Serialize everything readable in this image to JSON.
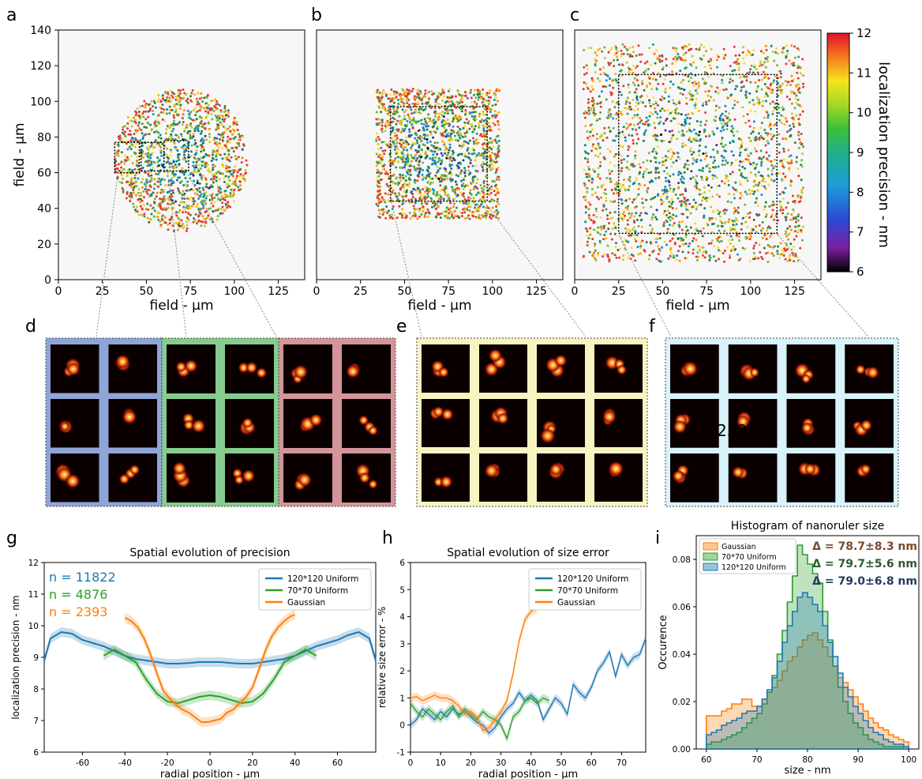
{
  "panel_letters": [
    "a",
    "b",
    "c",
    "d",
    "e",
    "f",
    "g",
    "h",
    "i"
  ],
  "overlay_text": "n = 2393",
  "scatter_axes": {
    "xlabel": "field - µm",
    "ylabel": "field - µm",
    "xticks": [
      "0",
      "25",
      "50",
      "75",
      "100",
      "125"
    ],
    "yticks": [
      "0",
      "20",
      "40",
      "60",
      "80",
      "100",
      "120",
      "140"
    ]
  },
  "colorbar": {
    "label": "localization precision - nm",
    "ticks": [
      "6",
      "7",
      "8",
      "9",
      "10",
      "11",
      "12"
    ]
  },
  "colors": {
    "panel_d1": "#8fa5d8",
    "panel_d2": "#86cc8e",
    "panel_d3": "#d4959a",
    "panel_e": "#f7f4c2",
    "panel_f": "#d9f3fa",
    "blue": "#1f77b4",
    "green": "#2ca02c",
    "orange": "#ff7f0e"
  },
  "chart_data": [
    {
      "id": "g",
      "type": "line",
      "title": "Spatial evolution of precision",
      "xlabel": "radial position - µm",
      "ylabel": "localization precision - nm",
      "xlim": [
        -78,
        78
      ],
      "ylim": [
        6,
        12
      ],
      "xticks": [
        "-60",
        "-40",
        "-20",
        "0",
        "20",
        "40",
        "60"
      ],
      "yticks": [
        "6",
        "7",
        "8",
        "9",
        "10",
        "11",
        "12"
      ],
      "n_labels": [
        "n = 11822",
        "n = 4876",
        "n = 2393"
      ],
      "legend": [
        "120*120 Uniform",
        "70*70 Uniform",
        "Gaussian"
      ],
      "series": [
        {
          "name": "120*120 Uniform",
          "x": [
            -78,
            -75,
            -70,
            -65,
            -60,
            -55,
            -50,
            -45,
            -40,
            -35,
            -30,
            -25,
            -20,
            -15,
            -10,
            -5,
            0,
            5,
            10,
            15,
            20,
            25,
            30,
            35,
            40,
            45,
            50,
            55,
            60,
            65,
            70,
            75,
            78
          ],
          "y": [
            8.9,
            9.6,
            9.8,
            9.75,
            9.55,
            9.45,
            9.35,
            9.2,
            9.05,
            8.95,
            8.9,
            8.85,
            8.8,
            8.8,
            8.82,
            8.85,
            8.85,
            8.85,
            8.82,
            8.8,
            8.8,
            8.85,
            8.9,
            8.95,
            9.05,
            9.2,
            9.35,
            9.45,
            9.55,
            9.7,
            9.8,
            9.6,
            8.9
          ]
        },
        {
          "name": "70*70 Uniform",
          "x": [
            -50,
            -45,
            -40,
            -35,
            -30,
            -25,
            -20,
            -15,
            -10,
            -5,
            0,
            5,
            10,
            15,
            20,
            25,
            30,
            35,
            40,
            45,
            50
          ],
          "y": [
            9.05,
            9.25,
            9.05,
            8.85,
            8.3,
            7.85,
            7.6,
            7.55,
            7.65,
            7.75,
            7.8,
            7.75,
            7.65,
            7.55,
            7.6,
            7.85,
            8.3,
            8.85,
            9.05,
            9.25,
            9.05
          ]
        },
        {
          "name": "Gaussian",
          "x": [
            -40,
            -37,
            -34,
            -31,
            -28,
            -25,
            -22,
            -19,
            -16,
            -13,
            -10,
            -7,
            -4,
            -1,
            2,
            5,
            8,
            11,
            14,
            17,
            20,
            23,
            26,
            29,
            32,
            35,
            38,
            40
          ],
          "y": [
            10.25,
            10.15,
            9.95,
            9.6,
            9.1,
            8.5,
            7.95,
            7.7,
            7.5,
            7.35,
            7.25,
            7.1,
            6.95,
            6.95,
            7.0,
            7.05,
            7.25,
            7.35,
            7.55,
            7.75,
            8.05,
            8.6,
            9.2,
            9.65,
            9.95,
            10.15,
            10.3,
            10.35
          ]
        }
      ]
    },
    {
      "id": "h",
      "type": "line",
      "title": "Spatial evolution of size error",
      "xlabel": "radial position - µm",
      "ylabel": "relative size error - %",
      "xlim": [
        0,
        78
      ],
      "ylim": [
        -1,
        6
      ],
      "xticks": [
        "0",
        "10",
        "20",
        "30",
        "40",
        "50",
        "60",
        "70"
      ],
      "yticks": [
        "-1",
        "0",
        "1",
        "2",
        "3",
        "4",
        "5",
        "6"
      ],
      "legend": [
        "120*120 Uniform",
        "70*70 Uniform",
        "Gaussian"
      ],
      "series": [
        {
          "name": "120*120 Uniform",
          "x": [
            0,
            2,
            4,
            6,
            8,
            10,
            12,
            14,
            16,
            18,
            20,
            22,
            24,
            26,
            28,
            30,
            32,
            34,
            36,
            38,
            40,
            42,
            44,
            46,
            48,
            50,
            52,
            54,
            56,
            58,
            60,
            62,
            64,
            66,
            68,
            70,
            72,
            74,
            76,
            78
          ],
          "y": [
            0.0,
            0.2,
            0.6,
            0.4,
            0.2,
            0.5,
            0.3,
            0.6,
            0.4,
            0.5,
            0.3,
            0.1,
            0.0,
            -0.3,
            -0.1,
            0.3,
            0.6,
            0.8,
            1.2,
            0.9,
            1.1,
            0.9,
            0.2,
            0.6,
            1.0,
            0.8,
            0.4,
            1.5,
            1.2,
            1.0,
            1.4,
            2.0,
            2.3,
            2.7,
            1.8,
            2.6,
            2.2,
            2.5,
            2.6,
            3.2
          ]
        },
        {
          "name": "70*70 Uniform",
          "x": [
            0,
            2,
            4,
            6,
            8,
            10,
            12,
            14,
            16,
            18,
            20,
            22,
            24,
            26,
            28,
            30,
            32,
            34,
            36,
            38,
            40,
            42,
            44,
            46
          ],
          "y": [
            0.8,
            0.5,
            0.3,
            0.6,
            0.4,
            0.2,
            0.5,
            0.7,
            0.3,
            0.6,
            0.4,
            0.2,
            0.5,
            0.3,
            0.2,
            0.0,
            -0.5,
            0.3,
            0.5,
            0.9,
            1.0,
            0.8,
            1.0,
            0.9
          ]
        },
        {
          "name": "Gaussian",
          "x": [
            0,
            2,
            4,
            6,
            8,
            10,
            12,
            14,
            16,
            18,
            20,
            22,
            24,
            26,
            28,
            30,
            32,
            34,
            36,
            38,
            40,
            42
          ],
          "y": [
            1.0,
            1.05,
            0.9,
            1.0,
            1.1,
            1.0,
            1.0,
            0.9,
            0.7,
            0.4,
            0.5,
            0.3,
            -0.2,
            -0.1,
            0.2,
            0.5,
            0.9,
            1.9,
            3.1,
            3.9,
            4.2,
            4.3
          ]
        }
      ]
    },
    {
      "id": "i",
      "type": "histogram",
      "title": "Histogram of nanoruler size",
      "xlabel": "size - nm",
      "ylabel": "Occurence",
      "xlim": [
        58,
        102
      ],
      "ylim": [
        0,
        0.09
      ],
      "xticks": [
        "60",
        "70",
        "80",
        "90",
        "100"
      ],
      "yticks": [
        "0.00",
        "0.02",
        "0.04",
        "0.06",
        "0.08"
      ],
      "bins": [
        60,
        61,
        62,
        63,
        64,
        65,
        66,
        67,
        68,
        69,
        70,
        71,
        72,
        73,
        74,
        75,
        76,
        77,
        78,
        79,
        80,
        81,
        82,
        83,
        84,
        85,
        86,
        87,
        88,
        89,
        90,
        91,
        92,
        93,
        94,
        95,
        96,
        97,
        98,
        99,
        100
      ],
      "legend": [
        "Gaussian",
        "70*70 Uniform",
        "120*120 Uniform"
      ],
      "annotations": [
        "Δ = 78.7±8.3 nm",
        "Δ = 79.7±5.6 nm",
        "Δ = 79.0±6.8 nm"
      ],
      "series": [
        {
          "name": "Gaussian",
          "values": [
            0.014,
            0.014,
            0.014,
            0.016,
            0.017,
            0.019,
            0.019,
            0.021,
            0.021,
            0.018,
            0.018,
            0.021,
            0.024,
            0.026,
            0.029,
            0.033,
            0.037,
            0.039,
            0.043,
            0.046,
            0.048,
            0.049,
            0.046,
            0.043,
            0.039,
            0.035,
            0.03,
            0.028,
            0.025,
            0.022,
            0.019,
            0.016,
            0.013,
            0.011,
            0.009,
            0.008,
            0.006,
            0.005,
            0.004,
            0.003
          ]
        },
        {
          "name": "70*70 Uniform",
          "values": [
            0.002,
            0.003,
            0.003,
            0.004,
            0.005,
            0.006,
            0.007,
            0.009,
            0.011,
            0.013,
            0.015,
            0.019,
            0.024,
            0.031,
            0.04,
            0.05,
            0.062,
            0.073,
            0.086,
            0.082,
            0.078,
            0.074,
            0.07,
            0.058,
            0.046,
            0.035,
            0.026,
            0.02,
            0.015,
            0.011,
            0.009,
            0.006,
            0.004,
            0.003,
            0.002,
            0.001,
            0.001,
            0.001,
            0.001,
            0.0
          ]
        },
        {
          "name": "120*120 Uniform",
          "values": [
            0.006,
            0.007,
            0.008,
            0.01,
            0.011,
            0.012,
            0.013,
            0.015,
            0.016,
            0.016,
            0.018,
            0.021,
            0.025,
            0.03,
            0.037,
            0.045,
            0.052,
            0.058,
            0.064,
            0.066,
            0.064,
            0.061,
            0.058,
            0.052,
            0.045,
            0.039,
            0.032,
            0.026,
            0.022,
            0.018,
            0.015,
            0.012,
            0.009,
            0.007,
            0.006,
            0.004,
            0.003,
            0.002,
            0.002,
            0.001
          ]
        }
      ]
    }
  ]
}
